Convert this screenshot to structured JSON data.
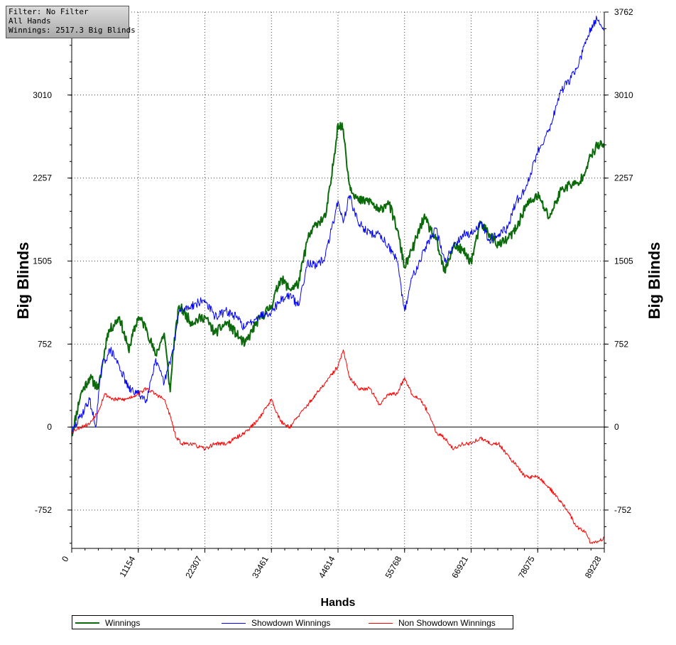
{
  "info_box": {
    "filter": "Filter: No Filter",
    "hands": "All Hands",
    "winnings": "Winnings: 2517.3 Big Blinds"
  },
  "legend": {
    "items": [
      {
        "label": "Winnings",
        "color": "#0b6b0b"
      },
      {
        "label": "Showdown Winnings",
        "color": "#0000ff"
      },
      {
        "label": "Non Showdown Winnings",
        "color": "#ff0000"
      }
    ]
  },
  "chart_data": {
    "type": "line",
    "title": "",
    "xlabel": "Hands",
    "ylabel": "Big Blinds",
    "y2label": "Big Blinds",
    "xlim": [
      0,
      89228
    ],
    "ylim": [
      -1100,
      3762
    ],
    "x_ticks": [
      "0",
      "11154",
      "22307",
      "33461",
      "44614",
      "55768",
      "66921",
      "78075",
      "89228"
    ],
    "y_ticks": [
      "-752",
      "0",
      "752",
      "1505",
      "2257",
      "3010",
      "3762"
    ],
    "grid": true,
    "legend_position": "bottom",
    "series": [
      {
        "name": "Winnings",
        "color": "#0b6b0b",
        "x": [
          0,
          1500,
          3000,
          4500,
          6000,
          8000,
          9500,
          11154,
          12500,
          14000,
          15500,
          16500,
          17000,
          18000,
          20000,
          22307,
          24000,
          26000,
          27500,
          29000,
          31000,
          33461,
          35000,
          36500,
          38000,
          39500,
          41000,
          42500,
          43500,
          44614,
          45500,
          46500,
          48000,
          50000,
          51500,
          53000,
          54500,
          55768,
          57000,
          59000,
          61000,
          62500,
          64000,
          65500,
          66921,
          68500,
          70000,
          71500,
          73000,
          74500,
          76000,
          78075,
          80000,
          82000,
          83500,
          85000,
          86500,
          88000,
          89228
        ],
        "values": [
          -80,
          300,
          450,
          350,
          850,
          1000,
          700,
          1000,
          900,
          650,
          850,
          320,
          700,
          1100,
          950,
          1000,
          850,
          950,
          850,
          750,
          950,
          1100,
          1350,
          1250,
          1300,
          1700,
          1850,
          1900,
          2250,
          2750,
          2700,
          2200,
          2050,
          2050,
          1950,
          2050,
          1800,
          1450,
          1600,
          1900,
          1700,
          1400,
          1650,
          1600,
          1500,
          1850,
          1750,
          1650,
          1700,
          1800,
          2000,
          2100,
          1900,
          2150,
          2200,
          2200,
          2400,
          2550,
          2560
        ]
      },
      {
        "name": "Showdown Winnings",
        "color": "#0000ff",
        "x": [
          0,
          1500,
          3000,
          4000,
          5000,
          6500,
          8000,
          9500,
          11154,
          12500,
          14000,
          15500,
          17000,
          18000,
          20000,
          22307,
          24000,
          26000,
          27500,
          29000,
          31000,
          33461,
          35000,
          36500,
          38000,
          39500,
          41000,
          42500,
          44614,
          45500,
          46500,
          48000,
          50000,
          51500,
          53000,
          54500,
          55768,
          57000,
          59000,
          61000,
          62500,
          64000,
          65500,
          66921,
          68500,
          70000,
          71500,
          73000,
          74500,
          76000,
          78075,
          80000,
          82000,
          83500,
          85000,
          86500,
          88000,
          89228
        ],
        "values": [
          -50,
          100,
          250,
          0,
          550,
          700,
          550,
          350,
          300,
          250,
          600,
          400,
          700,
          1050,
          1100,
          1150,
          1000,
          1050,
          1000,
          900,
          1000,
          1050,
          1150,
          1200,
          1100,
          1500,
          1450,
          1550,
          2050,
          1850,
          2100,
          1850,
          1750,
          1750,
          1650,
          1500,
          1050,
          1350,
          1600,
          1800,
          1500,
          1650,
          1750,
          1750,
          1850,
          1700,
          1750,
          1800,
          2050,
          2150,
          2500,
          2700,
          3050,
          3150,
          3300,
          3550,
          3700,
          3600
        ]
      },
      {
        "name": "Non Showdown Winnings",
        "color": "#ff0000",
        "x": [
          0,
          1500,
          3000,
          4500,
          5500,
          7000,
          9000,
          11154,
          12500,
          14000,
          15500,
          16500,
          17500,
          18500,
          20000,
          22307,
          24000,
          26000,
          27500,
          29000,
          31000,
          33461,
          35000,
          36500,
          38000,
          39500,
          41000,
          42500,
          44614,
          45500,
          46500,
          48000,
          50000,
          51500,
          53000,
          54500,
          55768,
          57000,
          58500,
          60000,
          61000,
          62500,
          64000,
          65500,
          66921,
          68500,
          70000,
          71500,
          73000,
          74500,
          76000,
          78075,
          80000,
          81500,
          83000,
          84500,
          86000,
          87000,
          88000,
          89228
        ],
        "values": [
          -40,
          0,
          30,
          150,
          300,
          250,
          250,
          300,
          350,
          300,
          250,
          100,
          -100,
          -150,
          -150,
          -200,
          -150,
          -150,
          -100,
          -50,
          50,
          250,
          50,
          0,
          100,
          200,
          300,
          400,
          550,
          700,
          450,
          350,
          350,
          200,
          300,
          300,
          450,
          300,
          250,
          100,
          -50,
          -100,
          -200,
          -150,
          -150,
          -100,
          -150,
          -150,
          -250,
          -350,
          -450,
          -450,
          -550,
          -650,
          -750,
          -900,
          -950,
          -1050,
          -1050,
          -1000
        ]
      }
    ]
  }
}
